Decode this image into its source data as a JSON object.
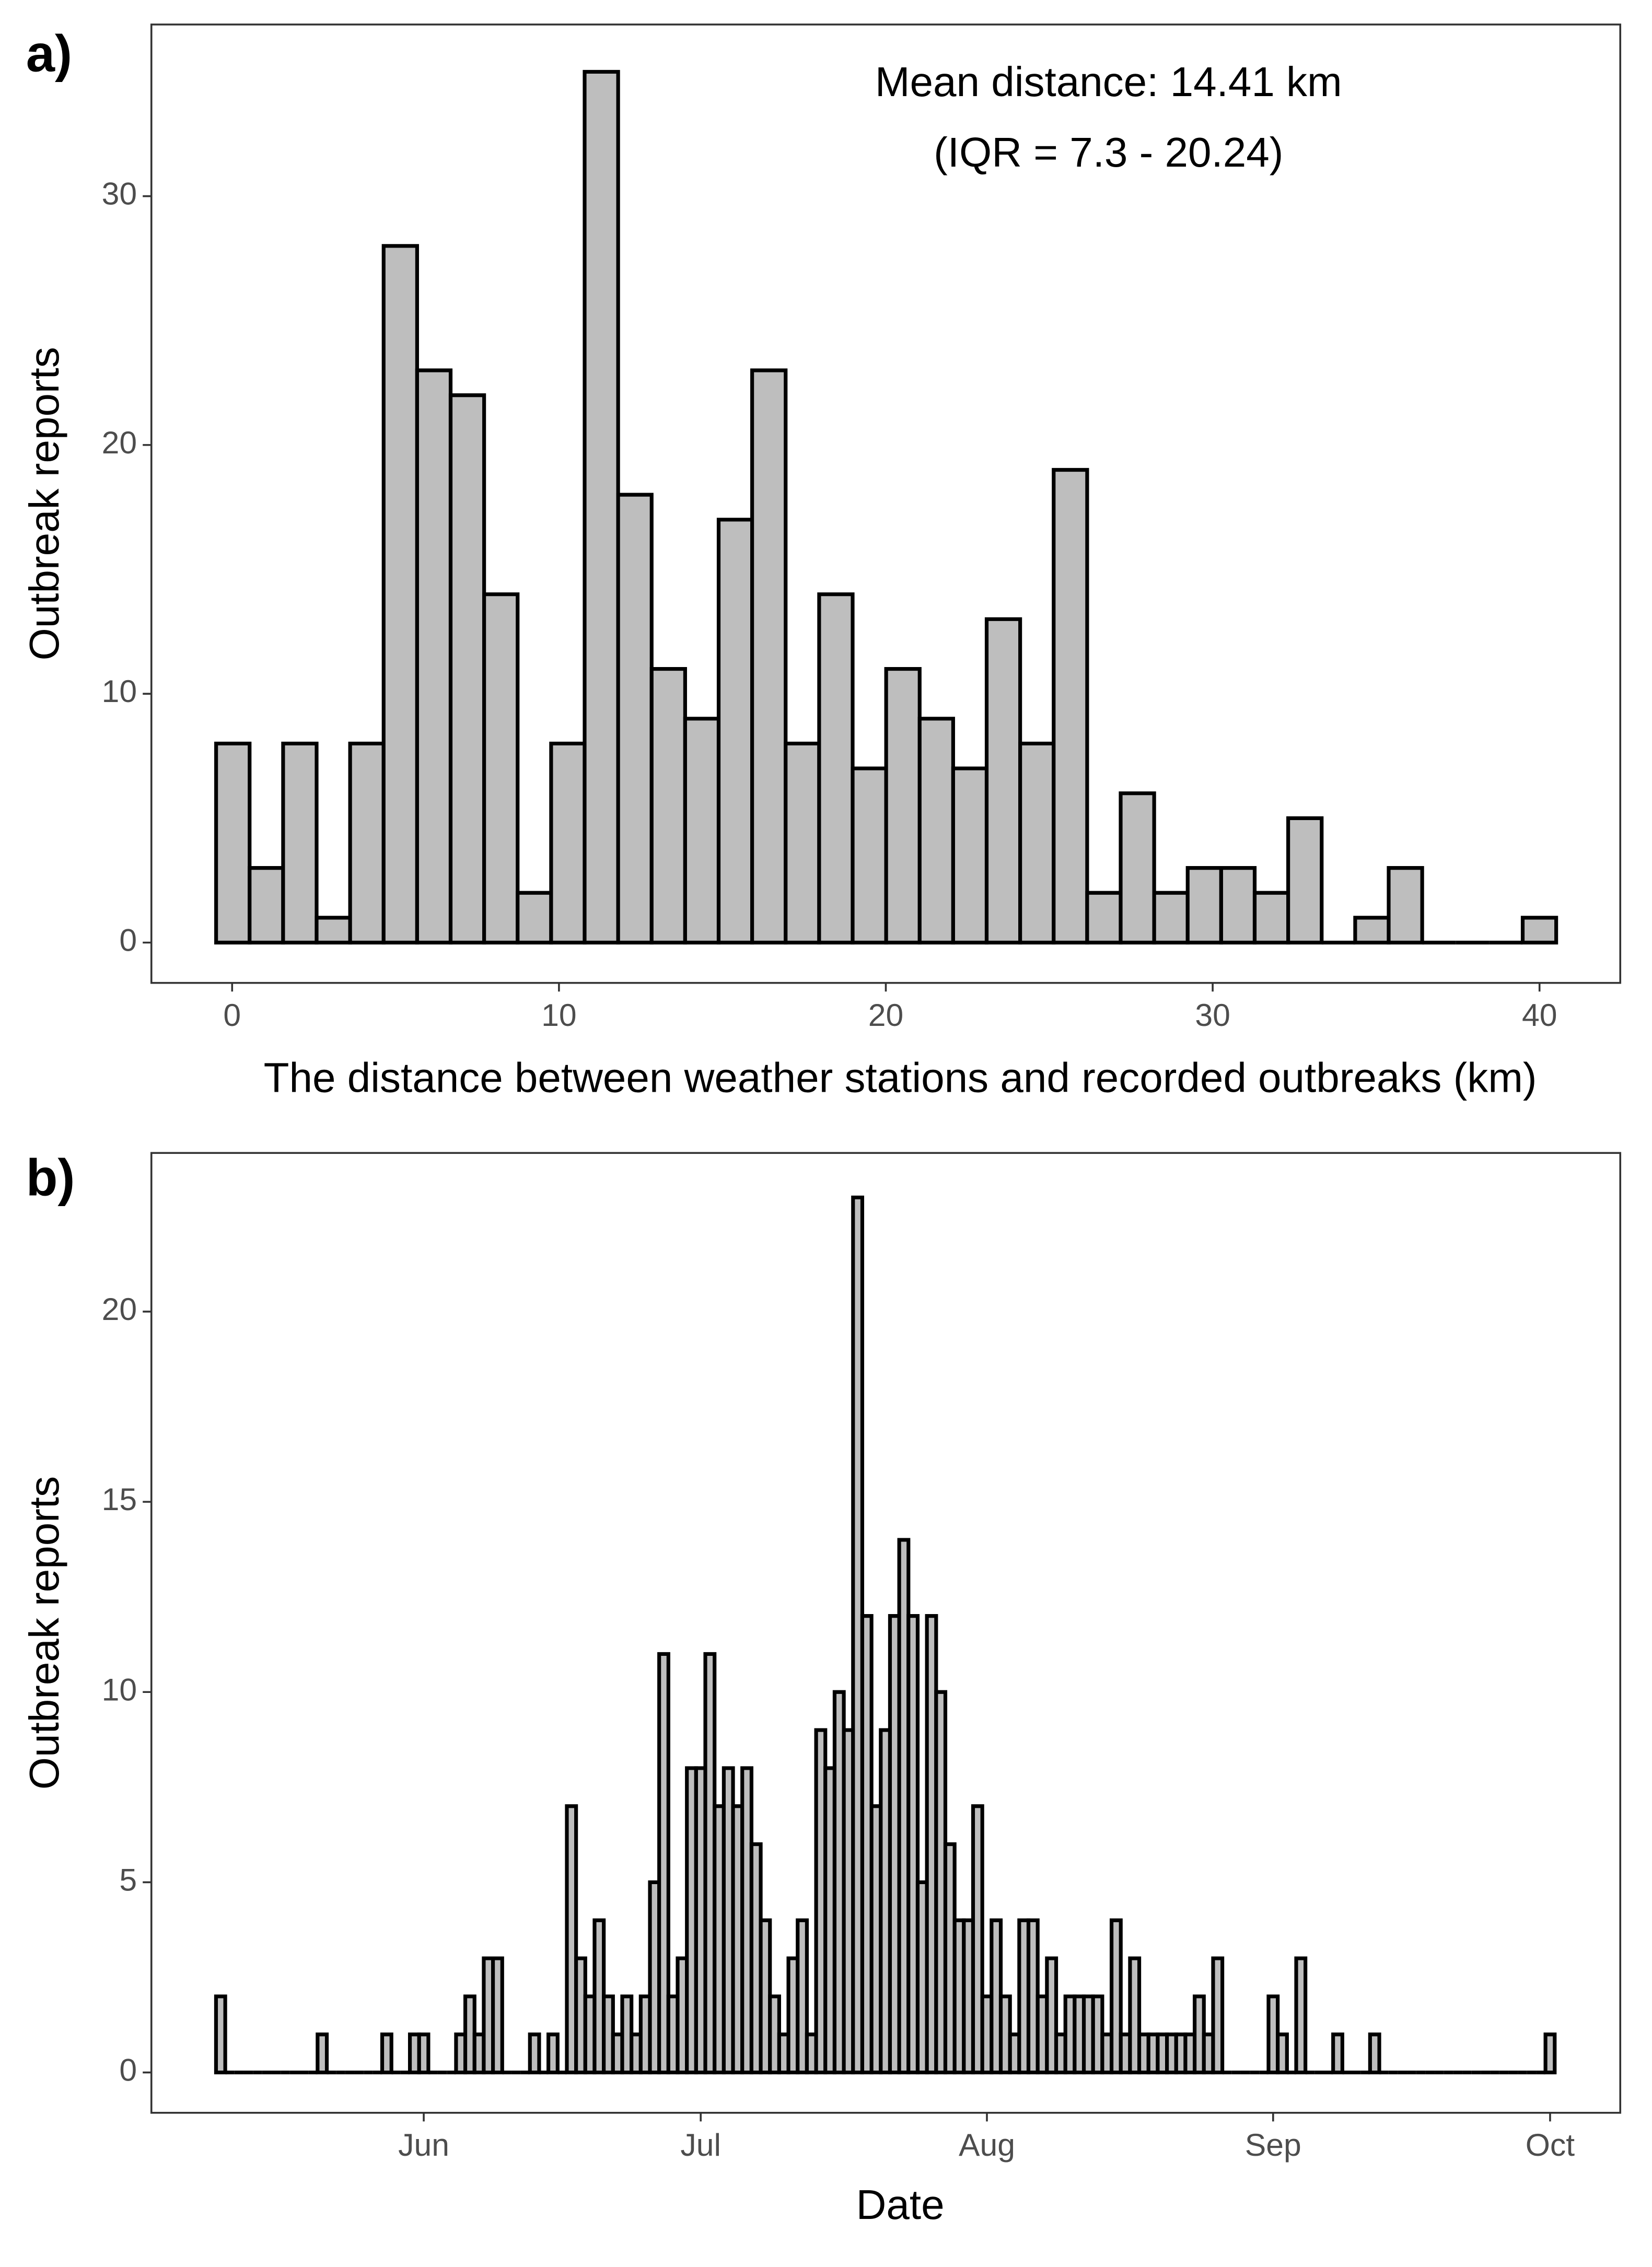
{
  "chart_data": [
    {
      "type": "histogram",
      "tag": "a)",
      "xlabel": "The distance between weather stations and recorded outbreaks (km)",
      "ylabel": "Outbreak reports",
      "annotations": [
        "Mean distance: 14.41 km",
        "(IQR = 7.3 - 20.24)"
      ],
      "bins": [
        -0.49,
        0.535,
        1.56,
        2.585,
        3.61,
        4.635,
        5.66,
        6.685,
        7.71,
        8.735,
        9.76,
        10.785,
        11.81,
        12.835,
        13.86,
        14.885,
        15.91,
        16.935,
        17.96,
        18.985,
        20.01,
        21.035,
        22.06,
        23.085,
        24.11,
        25.135,
        26.16,
        27.185,
        28.21,
        29.235,
        30.26,
        31.285,
        32.31,
        33.335,
        34.36,
        35.385,
        36.41,
        37.435,
        38.46,
        39.485,
        40.51
      ],
      "counts": [
        8,
        3,
        8,
        1,
        8,
        28,
        23,
        22,
        14,
        2,
        8,
        35,
        18,
        11,
        9,
        17,
        23,
        8,
        14,
        7,
        11,
        9,
        7,
        13,
        8,
        19,
        2,
        6,
        2,
        3,
        3,
        2,
        5,
        0,
        1,
        3,
        0,
        0,
        0,
        1
      ],
      "color": "#bebebe",
      "edgecolor": "#000000",
      "xlim": [
        -2.47,
        42.47
      ],
      "xticks": [
        0,
        10,
        20,
        30,
        40
      ],
      "ylim": [
        -1.62,
        36.9
      ],
      "yticks": [
        0,
        10,
        20,
        30
      ],
      "grid": false
    },
    {
      "type": "histogram",
      "tag": "b)",
      "xlabel": "Date",
      "ylabel": "Outbreak reports",
      "bins": [
        129.5,
        130.5,
        131.5,
        132.5,
        133.5,
        134.5,
        135.5,
        136.5,
        137.5,
        138.5,
        139.5,
        140.5,
        141.5,
        142.5,
        143.5,
        144.5,
        145.5,
        146.5,
        147.5,
        148.5,
        149.5,
        150.5,
        151.5,
        152.5,
        153.5,
        154.5,
        155.5,
        156.5,
        157.5,
        158.5,
        159.5,
        160.5,
        161.5,
        162.5,
        163.5,
        164.5,
        165.5,
        166.5,
        167.5,
        168.5,
        169.5,
        170.5,
        171.5,
        172.5,
        173.5,
        174.5,
        175.5,
        176.5,
        177.5,
        178.5,
        179.5,
        180.5,
        181.5,
        182.5,
        183.5,
        184.5,
        185.5,
        186.5,
        187.5,
        188.5,
        189.5,
        190.5,
        191.5,
        192.5,
        193.5,
        194.5,
        195.5,
        196.5,
        197.5,
        198.5,
        199.5,
        200.5,
        201.5,
        202.5,
        203.5,
        204.5,
        205.5,
        206.5,
        207.5,
        208.5,
        209.5,
        210.5,
        211.5,
        212.5,
        213.5,
        214.5,
        215.5,
        216.5,
        217.5,
        218.5,
        219.5,
        220.5,
        221.5,
        222.5,
        223.5,
        224.5,
        225.5,
        226.5,
        227.5,
        228.5,
        229.5,
        230.5,
        231.5,
        232.5,
        233.5,
        234.5,
        235.5,
        236.5,
        237.5,
        238.5,
        239.5,
        240.5,
        241.5,
        242.5,
        243.5,
        244.5,
        245.5,
        246.5,
        247.5,
        248.5,
        249.5,
        250.5,
        251.5,
        252.5,
        253.5,
        254.5,
        255.5,
        256.5,
        257.5,
        258.5,
        259.5,
        260.5,
        261.5,
        262.5,
        263.5,
        264.5,
        265.5,
        266.5,
        267.5,
        268.5,
        269.5,
        270.5,
        271.5,
        272.5,
        273.5,
        274.5
      ],
      "counts": [
        2,
        0,
        0,
        0,
        0,
        0,
        0,
        0,
        0,
        0,
        0,
        1,
        0,
        0,
        0,
        0,
        0,
        0,
        1,
        0,
        0,
        1,
        1,
        0,
        0,
        0,
        1,
        2,
        1,
        3,
        3,
        0,
        0,
        0,
        1,
        0,
        1,
        0,
        7,
        3,
        2,
        4,
        2,
        1,
        2,
        1,
        2,
        5,
        11,
        2,
        3,
        8,
        8,
        11,
        7,
        8,
        7,
        8,
        6,
        4,
        2,
        1,
        3,
        4,
        1,
        9,
        8,
        10,
        9,
        23,
        12,
        7,
        9,
        12,
        14,
        12,
        5,
        12,
        10,
        6,
        4,
        4,
        7,
        2,
        4,
        2,
        1,
        4,
        4,
        2,
        3,
        1,
        2,
        2,
        2,
        2,
        1,
        4,
        1,
        3,
        1,
        1,
        1,
        1,
        1,
        1,
        2,
        1,
        3,
        0,
        0,
        0,
        0,
        0,
        2,
        1,
        0,
        3,
        0,
        0,
        0,
        1,
        0,
        0,
        0,
        1,
        0,
        0,
        0,
        0,
        0,
        0,
        0,
        0,
        0,
        0,
        0,
        0,
        0,
        0,
        0,
        0,
        0,
        0,
        1
      ],
      "color": "#bebebe",
      "edgecolor": "#000000",
      "xlim": [
        122.5,
        281.6
      ],
      "xticks": [
        {
          "value": 152,
          "label": "Jun"
        },
        {
          "value": 182,
          "label": "Jul"
        },
        {
          "value": 213,
          "label": "Aug"
        },
        {
          "value": 244,
          "label": "Sep"
        },
        {
          "value": 274,
          "label": "Oct"
        }
      ],
      "ylim": [
        -1.06,
        24.17
      ],
      "yticks": [
        0,
        5,
        10,
        15,
        20
      ],
      "grid": false
    }
  ]
}
